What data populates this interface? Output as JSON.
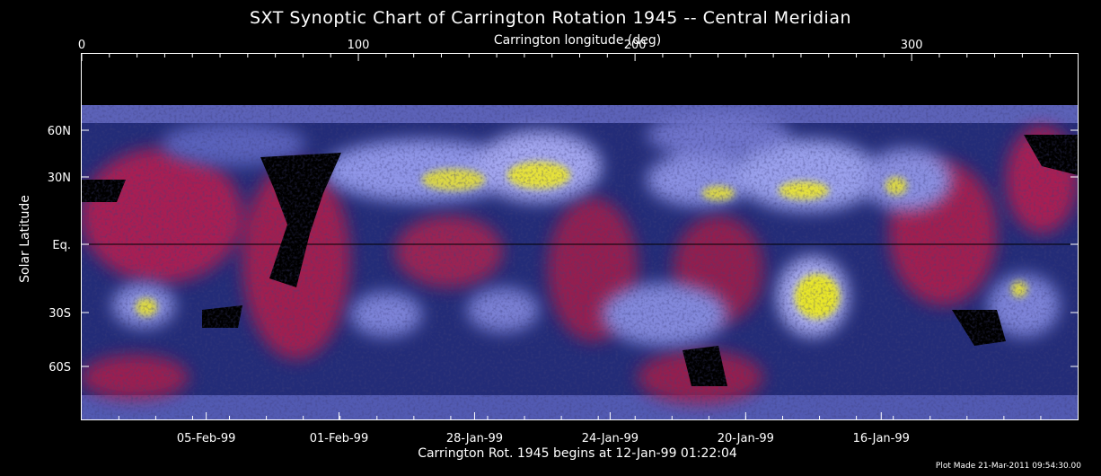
{
  "chart_data": {
    "type": "heatmap",
    "title": "SXT Synoptic Chart of Carrington Rotation 1945 -- Central Meridian",
    "x_top_label": "Carrington longitude (deg)",
    "x_top_ticks": [
      "0",
      "100",
      "200",
      "300"
    ],
    "x_top_tick_values": [
      0,
      100,
      200,
      300
    ],
    "xlim": [
      0,
      360
    ],
    "ylabel": "Solar Latitude",
    "y_ticks": [
      "60N",
      "30N",
      "Eq.",
      "30S",
      "60S"
    ],
    "y_tick_values": [
      60,
      30,
      0,
      -30,
      -60
    ],
    "x_bottom_label": "Carrington Rot. 1945 begins at 12-Jan-99 01:22:04",
    "x_bottom_ticks": [
      "05-Feb-99",
      "01-Feb-99",
      "28-Jan-99",
      "24-Jan-99",
      "20-Jan-99",
      "16-Jan-99"
    ],
    "x_bottom_tick_longitudes": [
      45,
      93,
      142,
      191,
      240,
      289
    ],
    "colors": {
      "background": "#000000",
      "low": "#1c2466",
      "mid": "#7c82e0",
      "high": "#e8e62a",
      "hole": "#e01830"
    }
  },
  "footnote": "Plot Made 21-Mar-2011 09:54:30.00"
}
